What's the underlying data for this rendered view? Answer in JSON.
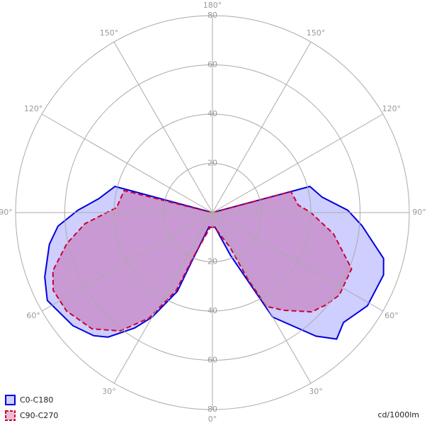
{
  "chart_data": {
    "type": "polar",
    "unit_label": "cd/1000lm",
    "rlim": [
      0,
      80
    ],
    "rticks": [
      20,
      40,
      60,
      80
    ],
    "angle_ticks": [
      {
        "value": 0,
        "label": "0°"
      },
      {
        "value": 30,
        "label": "30°"
      },
      {
        "value": 60,
        "label": "60°"
      },
      {
        "value": 90,
        "label": "90°"
      },
      {
        "value": 120,
        "label": "120°"
      },
      {
        "value": 150,
        "label": "150°"
      },
      {
        "value": 180,
        "label": "180°"
      },
      {
        "value": 210,
        "label": "150°"
      },
      {
        "value": 240,
        "label": "120°"
      },
      {
        "value": 270,
        "label": "90°"
      },
      {
        "value": 300,
        "label": "60°"
      },
      {
        "value": 330,
        "label": "30°"
      }
    ],
    "series": [
      {
        "name": "C0-C180",
        "color": "#0000dd",
        "fill": "rgba(60,60,255,0.25)",
        "dashed": false,
        "angles": [
          0,
          14,
          23,
          24,
          30,
          34,
          40,
          44,
          51,
          62,
          69,
          79,
          85,
          91,
          97,
          105,
          180,
          255,
          262,
          269,
          275,
          285,
          290,
          301,
          310,
          315.5,
          320,
          330,
          332,
          337,
          350,
          360
        ],
        "values": [
          6,
          6,
          22,
          35,
          49,
          56.5,
          66,
          69.5,
          73,
          76,
          73,
          67.5,
          63,
          54.7,
          46.5,
          41,
          0,
          41,
          45,
          55,
          61,
          72,
          74,
          73.5,
          69.5,
          72,
          65.5,
          49,
          34,
          19,
          6,
          6
        ]
      },
      {
        "name": "C90-C270",
        "color": "#cc0033",
        "fill": "rgba(190,30,110,0.3)",
        "dashed": true,
        "angles": [
          0,
          8,
          23,
          25,
          31,
          38,
          46,
          56,
          64,
          70,
          78,
          85,
          93,
          104,
          180,
          255,
          265,
          270,
          280,
          292,
          303,
          309,
          315,
          324,
          330,
          332,
          333,
          352,
          360
        ],
        "values": [
          6,
          6,
          19,
          35,
          50,
          61,
          68,
          71.5,
          72,
          69,
          60.5,
          52,
          39,
          37,
          0,
          33,
          35,
          40,
          50,
          61,
          61.5,
          59.5,
          57,
          49,
          44,
          31,
          16,
          6,
          6
        ]
      }
    ]
  }
}
